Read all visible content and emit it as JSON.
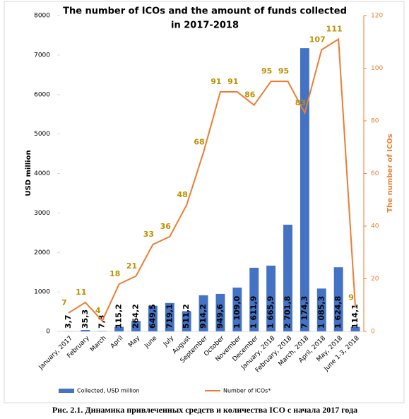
{
  "chart_data": {
    "type": "bar-line",
    "title": [
      "The number of ICOs  and the amount of funds collected",
      "in 2017-2018"
    ],
    "y_label": "USD million",
    "y2_label": "The number of ICOs",
    "categories": [
      "January, 2017",
      "February",
      "March",
      "April",
      "May",
      "June",
      "July",
      "August",
      "September",
      "October",
      "November",
      "December",
      "January, 2018",
      "February, 2018",
      "March, 2018",
      "April, 2018",
      "May, 2018",
      "June 1-3, 2018"
    ],
    "series": [
      {
        "name": "Collected, USD million",
        "color": "#4472c4",
        "type": "bar",
        "values": [
          3.7,
          35.3,
          7.3,
          115.2,
          264.2,
          649.5,
          719.1,
          511.2,
          914.2,
          949.6,
          1109.0,
          1611.9,
          1665.9,
          2701.8,
          7174.3,
          1085.3,
          1624.8,
          114.1
        ],
        "value_labels": [
          "3,7",
          "35,3",
          "7,3",
          "115,2",
          "264,2",
          "649,5",
          "719,1",
          "511,2",
          "914,2",
          "949,6",
          "1 109,0",
          "1 611,9",
          "1 665,9",
          "2 701,8",
          "7 174,3",
          "1 085,3",
          "1 624,8",
          "114,1"
        ]
      },
      {
        "name": "Number of ICOs*",
        "color": "#ed7d31",
        "label_color": "#bf9000",
        "type": "line",
        "axis": "y2",
        "values": [
          7,
          11,
          4,
          18,
          21,
          33,
          36,
          48,
          68,
          91,
          91,
          86,
          95,
          95,
          83,
          107,
          111,
          9
        ]
      }
    ],
    "ylim": [
      0,
      8000
    ],
    "yticks": [
      0,
      1000,
      2000,
      3000,
      4000,
      5000,
      6000,
      7000,
      8000
    ],
    "y2lim": [
      0,
      120
    ],
    "y2ticks": [
      0,
      20,
      40,
      60,
      80,
      100,
      120
    ],
    "legend": "bottom"
  },
  "caption": "Рис. 2.1. Динамика привлеченных средств и количества ICO с начала 2017 года"
}
